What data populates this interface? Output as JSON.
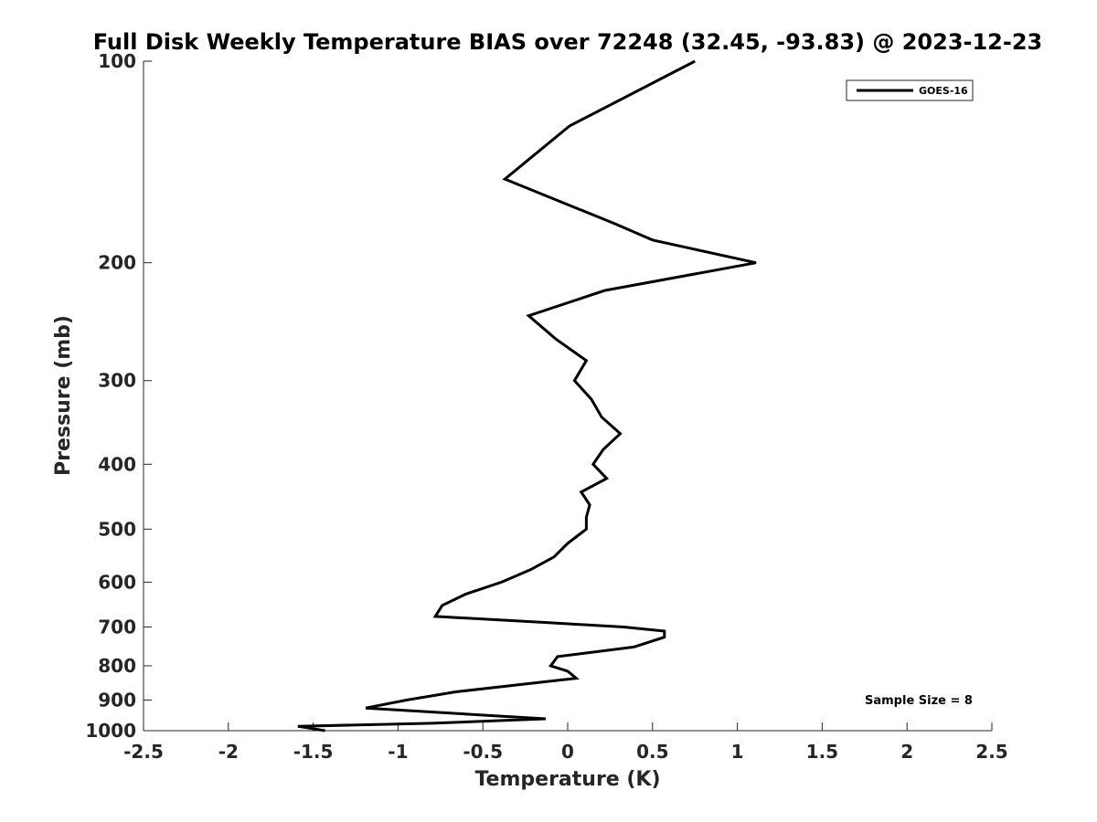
{
  "chart_data": {
    "type": "line",
    "title": "Full Disk Weekly Temperature BIAS over 72248 (32.45, -93.83) @ 2023-12-23",
    "xlabel": "Temperature (K)",
    "ylabel": "Pressure (mb)",
    "xlim": [
      -2.5,
      2.5
    ],
    "ylim": [
      100,
      1000
    ],
    "yscale": "log",
    "yreversed": true,
    "x_ticks": [
      "-2.5",
      "-2",
      "-1.5",
      "-1",
      "-0.5",
      "0",
      "0.5",
      "1",
      "1.5",
      "2",
      "2.5"
    ],
    "y_ticks": [
      "100",
      "200",
      "300",
      "400",
      "500",
      "600",
      "700",
      "800",
      "900",
      "1000"
    ],
    "grid": false,
    "legend_position": "top-right",
    "series": [
      {
        "name": "GOES-16",
        "color": "#000000",
        "points": [
          [
            0.75,
            100
          ],
          [
            0.01,
            125
          ],
          [
            -0.37,
            150
          ],
          [
            0.28,
            175
          ],
          [
            0.5,
            185
          ],
          [
            1.11,
            200
          ],
          [
            0.22,
            220
          ],
          [
            -0.23,
            240
          ],
          [
            -0.07,
            260
          ],
          [
            0.11,
            280
          ],
          [
            0.04,
            300
          ],
          [
            0.14,
            320
          ],
          [
            0.2,
            340
          ],
          [
            0.31,
            360
          ],
          [
            0.21,
            380
          ],
          [
            0.15,
            400
          ],
          [
            0.23,
            420
          ],
          [
            0.08,
            440
          ],
          [
            0.13,
            460
          ],
          [
            0.11,
            480
          ],
          [
            0.11,
            500
          ],
          [
            0.0,
            525
          ],
          [
            -0.08,
            550
          ],
          [
            -0.22,
            575
          ],
          [
            -0.39,
            600
          ],
          [
            -0.6,
            625
          ],
          [
            -0.74,
            650
          ],
          [
            -0.78,
            675
          ],
          [
            -0.1,
            690
          ],
          [
            0.33,
            700
          ],
          [
            0.57,
            710
          ],
          [
            0.57,
            725
          ],
          [
            0.39,
            750
          ],
          [
            -0.06,
            775
          ],
          [
            -0.1,
            800
          ],
          [
            0.0,
            815
          ],
          [
            0.05,
            835
          ],
          [
            -0.22,
            850
          ],
          [
            -0.66,
            875
          ],
          [
            -0.95,
            900
          ],
          [
            -1.19,
            925
          ],
          [
            -0.43,
            950
          ],
          [
            -0.13,
            960
          ],
          [
            -0.8,
            975
          ],
          [
            -1.59,
            985
          ],
          [
            -1.43,
            1000
          ]
        ]
      }
    ],
    "annotation": "Sample Size = 8"
  }
}
